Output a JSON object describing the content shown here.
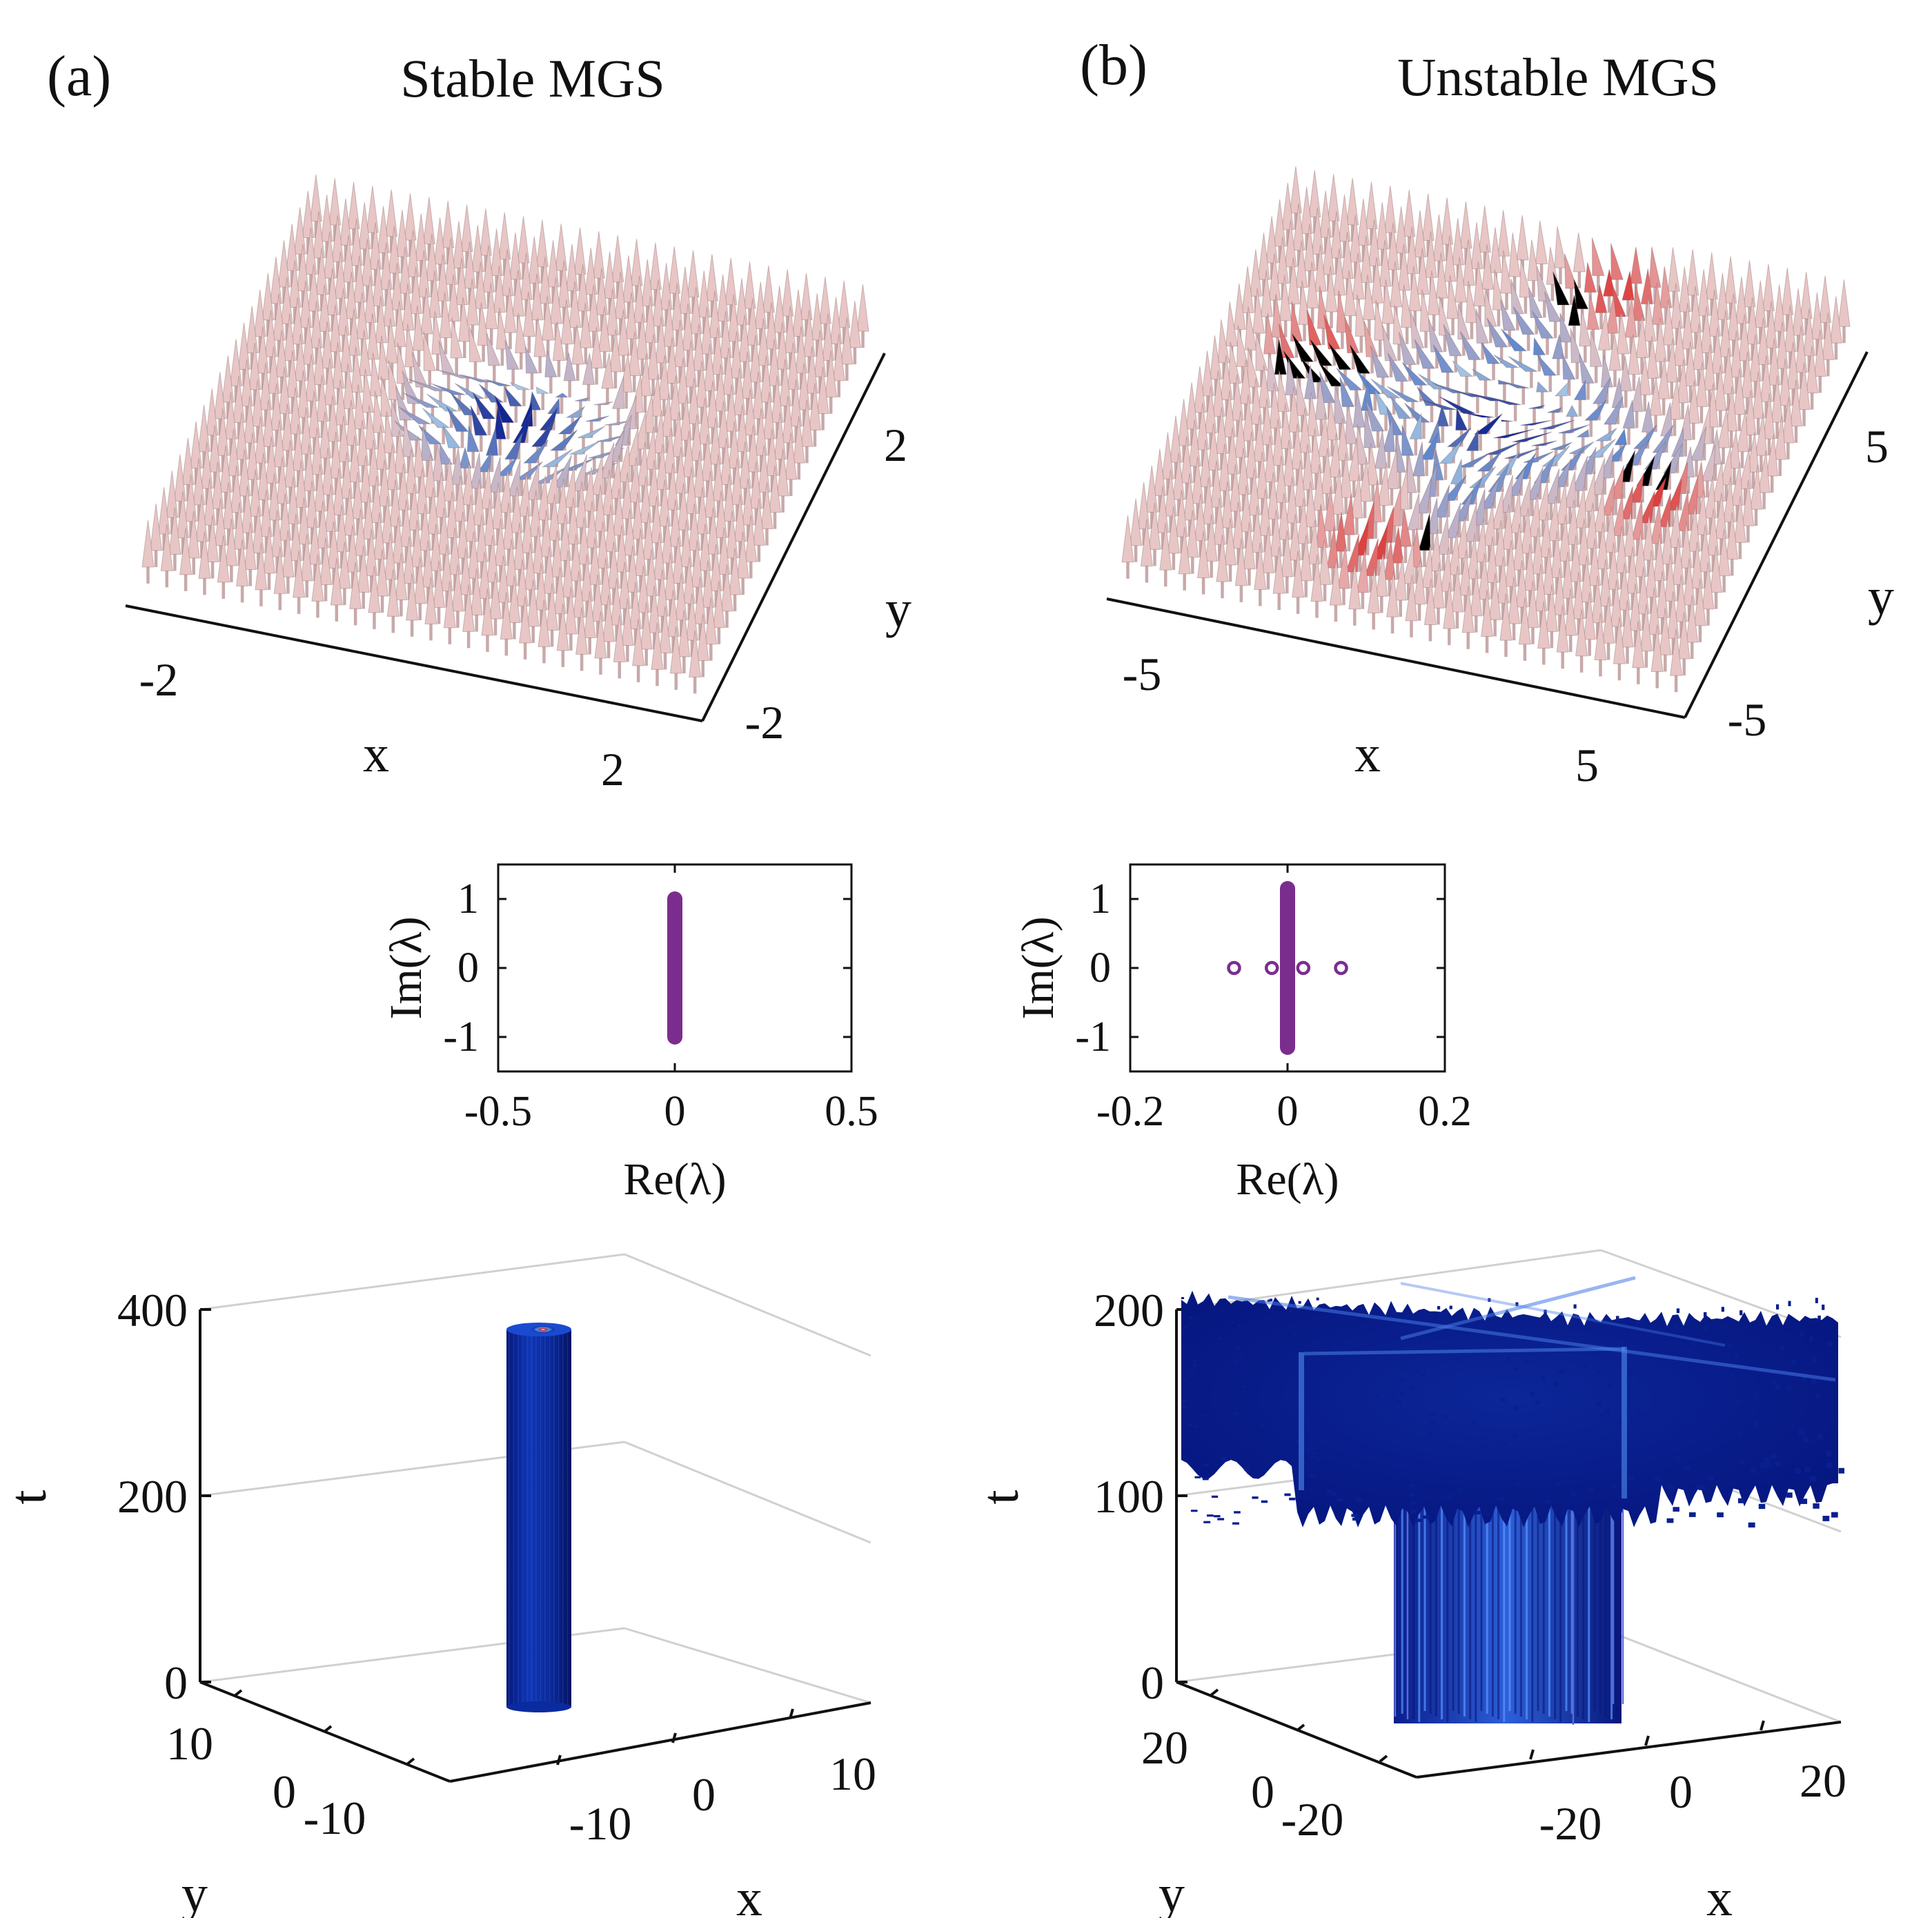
{
  "panels": [
    {
      "letter": "(a)",
      "title": "Stable MGS"
    },
    {
      "letter": "(b)",
      "title": "Unstable MGS"
    }
  ],
  "colors": {
    "pink": "#e8c6c6",
    "red": "#dd3a3a",
    "lightblue": "#a8cbe8",
    "blue": "#2a6fd1",
    "navy": "#0a1f8f",
    "purple": "#7b2d8e",
    "axis": "#111111"
  },
  "chart_data": [
    {
      "id": "a-spin",
      "type": "vector-field-3d",
      "title": "Stable MGS",
      "xlabel": "x",
      "ylabel": "y",
      "xticks": [
        "-2",
        "2"
      ],
      "yticks": [
        "-2",
        "2"
      ],
      "xlim": [
        -2.5,
        2.5
      ],
      "ylim": [
        -2.5,
        2.5
      ]
    },
    {
      "id": "b-spin",
      "type": "vector-field-3d",
      "title": "Unstable MGS",
      "xlabel": "x",
      "ylabel": "y",
      "xticks": [
        "-5",
        "5"
      ],
      "yticks": [
        "-5",
        "5"
      ],
      "xlim": [
        -6,
        6
      ],
      "ylim": [
        -6,
        6
      ]
    },
    {
      "id": "a-spec",
      "type": "scatter",
      "xlabel": "Re(λ)",
      "ylabel": "Im(λ)",
      "xlim": [
        -0.5,
        0.5
      ],
      "ylim": [
        -1.5,
        1.5
      ],
      "xticks": [
        -0.5,
        0,
        0.5
      ],
      "yticks": [
        1,
        0,
        -1
      ],
      "xtick_labels": [
        "-0.5",
        "0",
        "0.5"
      ],
      "ytick_labels": [
        "1",
        "0",
        "-1"
      ],
      "continuous_band": {
        "re": 0,
        "im_from": -1.0,
        "im_to": 1.0
      },
      "points": []
    },
    {
      "id": "b-spec",
      "type": "scatter",
      "xlabel": "Re(λ)",
      "ylabel": "Im(λ)",
      "xlim": [
        -0.2,
        0.2
      ],
      "ylim": [
        -1.5,
        1.5
      ],
      "xticks": [
        -0.2,
        0,
        0.2
      ],
      "yticks": [
        1,
        0,
        -1
      ],
      "xtick_labels": [
        "-0.2",
        "0",
        "0.2"
      ],
      "ytick_labels": [
        "1",
        "0",
        "-1"
      ],
      "continuous_band": {
        "re": 0,
        "im_from": -1.15,
        "im_to": 1.15
      },
      "points": [
        {
          "re": -0.068,
          "im": 0
        },
        {
          "re": -0.02,
          "im": 0
        },
        {
          "re": 0.02,
          "im": 0
        },
        {
          "re": 0.068,
          "im": 0
        }
      ]
    },
    {
      "id": "a-evol",
      "type": "surface-3d",
      "zlabel": "t",
      "xlabel": "x",
      "ylabel": "y",
      "zticks": [
        "400",
        "200",
        "0"
      ],
      "xticks": [
        "-10",
        "0",
        "10"
      ],
      "yticks": [
        "10",
        "0",
        "-10"
      ],
      "zlim": [
        0,
        400
      ],
      "t_end": 380
    },
    {
      "id": "b-evol",
      "type": "surface-3d",
      "zlabel": "t",
      "xlabel": "x",
      "ylabel": "y",
      "zticks": [
        "200",
        "100",
        "0"
      ],
      "xticks": [
        "-20",
        "0",
        "20"
      ],
      "yticks": [
        "20",
        "0",
        "-20"
      ],
      "zlim": [
        0,
        200
      ],
      "t_breakup": 100
    }
  ]
}
